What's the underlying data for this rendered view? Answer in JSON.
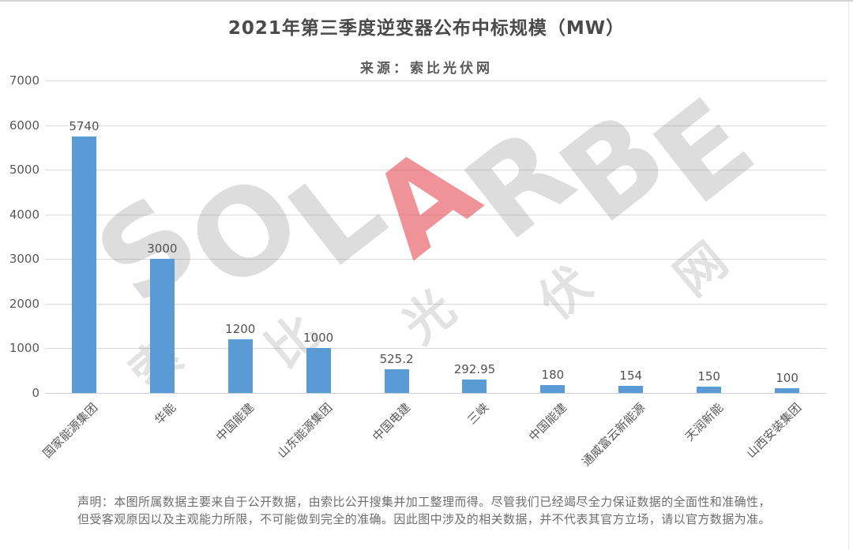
{
  "title": "2021年第三季度逆变器公布中标规模（MW）",
  "source": "来源：索比光伏网",
  "watermark": {
    "en_text": "SOLARBE",
    "red_letter": "A",
    "cn_text": "索比光伏网",
    "gray_color": "#d9d9d9",
    "red_color": "#e23a46"
  },
  "chart_data": {
    "type": "bar",
    "title": "2021年第三季度逆变器公布中标规模（MW）",
    "subtitle": "来源：索比光伏网",
    "categories": [
      "国家能源集团",
      "华能",
      "中国能建",
      "山东能源集团",
      "中国电建",
      "三峡",
      "中国能建",
      "通威富云新能源",
      "天润新能",
      "山西安装集团"
    ],
    "values": [
      5740,
      3000,
      1200,
      1000,
      525.2,
      292.95,
      180,
      154,
      150,
      100
    ],
    "value_labels": [
      "5740",
      "3000",
      "1200",
      "1000",
      "525.2",
      "292.95",
      "180",
      "154",
      "150",
      "100"
    ],
    "xlabel": "",
    "ylabel": "",
    "ylim": [
      0,
      7000
    ],
    "yticks": [
      0,
      1000,
      2000,
      3000,
      4000,
      5000,
      6000,
      7000
    ],
    "grid": true,
    "legend": false,
    "bar_color": "#5B9BD5"
  },
  "disclaimer": {
    "line1": "声明：本图所属数据主要来自于公开数据，由索比公开搜集并加工整理而得。尽管我们已经竭尽全力保证数据的全面性和准确性，",
    "line2": "但受客观原因以及主观能力所限，不可能做到完全的准确。因此图中涉及的相关数据，并不代表其官方立场，请以官方数据为准。"
  }
}
